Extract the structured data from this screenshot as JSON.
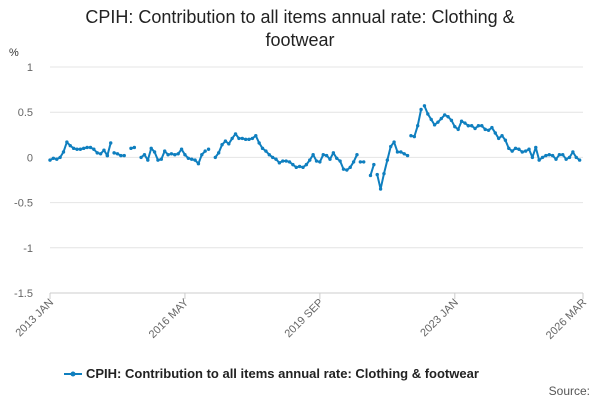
{
  "chart_data": {
    "type": "line",
    "title": "CPIH: Contribution to all items annual rate: Clothing & footwear",
    "title_lines": [
      "CPIH: Contribution to all items annual rate: Clothing &",
      "footwear"
    ],
    "ylabel": "%",
    "xlabel": "",
    "ylim": [
      -1.5,
      1
    ],
    "yticks": [
      1,
      0.5,
      0,
      -0.5,
      -1,
      -1.5
    ],
    "ytick_labels": [
      "1",
      "0.5",
      "0",
      "-0.5",
      "-1",
      "-1.5"
    ],
    "x_range": [
      0,
      158
    ],
    "xticks": [
      {
        "index": 0,
        "label": "2013 JAN"
      },
      {
        "index": 40,
        "label": "2016 MAY"
      },
      {
        "index": 80,
        "label": "2019 SEP"
      },
      {
        "index": 120,
        "label": "2023 JAN"
      },
      {
        "index": 158,
        "label": "2026 MAR"
      }
    ],
    "grid": true,
    "legend_position": "bottom",
    "series": [
      {
        "name": "CPIH: Contribution to all items annual rate: Clothing & footwear",
        "color": "#0f7fbf",
        "segments": [
          {
            "start": 0,
            "values": [
              -0.03,
              -0.01,
              -0.02,
              0.0,
              0.06,
              0.17,
              0.13,
              0.1,
              0.09,
              0.09,
              0.1,
              0.11,
              0.11,
              0.09,
              0.05,
              0.04,
              0.08,
              0.02
            ]
          },
          {
            "start": 17,
            "values": [
              0.02,
              0.16
            ]
          },
          {
            "start": 19,
            "values": [
              0.05,
              0.04,
              0.02,
              0.02
            ]
          },
          {
            "start": 24,
            "values": [
              0.1,
              0.11
            ]
          },
          {
            "start": 27,
            "values": [
              0.0,
              0.03,
              -0.03,
              0.1,
              0.06,
              -0.03,
              -0.02,
              0.07,
              0.03,
              0.04,
              0.03,
              0.04,
              0.09,
              0.03,
              -0.01,
              -0.02,
              -0.03,
              -0.07,
              0.03,
              0.07
            ]
          },
          {
            "start": 47,
            "values": [
              0.09
            ]
          },
          {
            "start": 49,
            "values": [
              0.0,
              0.05,
              0.14,
              0.18,
              0.15,
              0.21,
              0.26,
              0.21,
              0.21,
              0.2,
              0.2,
              0.21,
              0.24,
              0.16,
              0.1,
              0.07,
              0.03,
              0.0,
              -0.02,
              -0.06,
              -0.04,
              -0.04,
              -0.05,
              -0.08,
              -0.11,
              -0.1,
              -0.11,
              -0.08,
              -0.03,
              0.03,
              -0.04,
              -0.05,
              0.03,
              0.02,
              -0.02,
              0.05,
              -0.01,
              -0.04,
              -0.13,
              -0.14,
              -0.11,
              -0.05,
              0.03
            ]
          },
          {
            "start": 92,
            "values": [
              -0.05,
              -0.05
            ]
          },
          {
            "start": 95,
            "values": [
              -0.2,
              -0.08
            ]
          },
          {
            "start": 97,
            "values": [
              -0.19,
              -0.35,
              -0.18,
              -0.03,
              0.12,
              0.17,
              0.06,
              0.06,
              0.04,
              0.02
            ]
          },
          {
            "start": 107,
            "values": [
              0.24,
              0.23,
              0.35,
              0.53
            ]
          },
          {
            "start": 111,
            "values": [
              0.57,
              0.48,
              0.42,
              0.36,
              0.39,
              0.43,
              0.47,
              0.45,
              0.41,
              0.34,
              0.31,
              0.4,
              0.38,
              0.35,
              0.35,
              0.32,
              0.35,
              0.35,
              0.31,
              0.3,
              0.33,
              0.27,
              0.21,
              0.24,
              0.19,
              0.1,
              0.07,
              0.1,
              0.09,
              0.06,
              0.07,
              0.09,
              0.0,
              0.11,
              -0.03,
              0.0,
              0.02,
              0.03,
              0.02,
              -0.02,
              0.03,
              0.03,
              -0.02,
              0.0,
              0.06,
              0.0,
              -0.03
            ]
          }
        ]
      }
    ],
    "source_label": "Source:"
  }
}
